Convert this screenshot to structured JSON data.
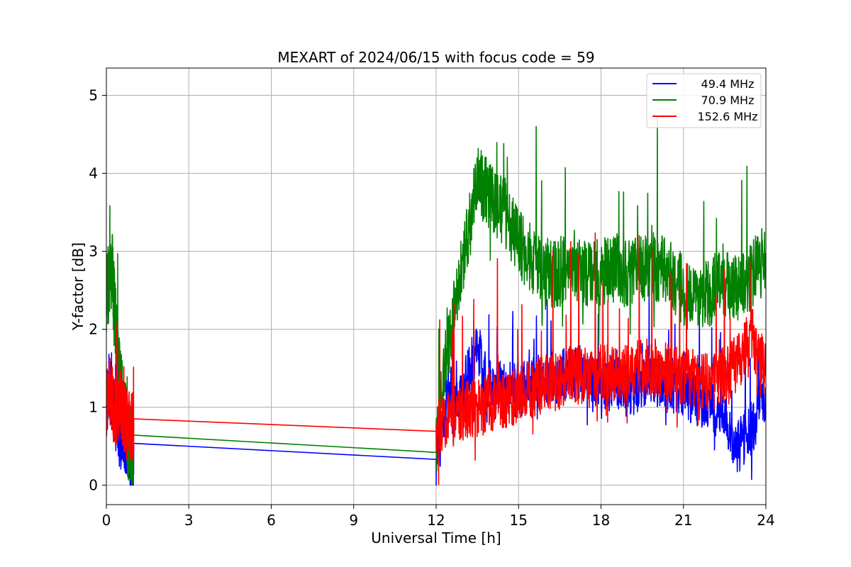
{
  "chart_data": {
    "type": "line",
    "title": "MEXART of 2024/06/15 with focus code = 59",
    "xlabel": "Universal Time [h]",
    "ylabel": "Y-factor [dB]",
    "xlim": [
      0,
      24
    ],
    "ylim": [
      -0.25,
      5.35
    ],
    "xticks": [
      0,
      3,
      6,
      9,
      12,
      15,
      18,
      21,
      24
    ],
    "yticks": [
      0,
      1,
      2,
      3,
      4,
      5
    ],
    "grid": true,
    "legend_position": "top-right",
    "series": [
      {
        "name": "49.4 MHz",
        "color": "#0000ff",
        "keypoints": {
          "x": [
            0,
            0.1,
            0.2,
            0.3,
            0.4,
            0.5,
            0.6,
            0.7,
            0.8,
            0.9,
            1.0,
            12.0,
            12.25,
            12.5,
            12.75,
            13.0,
            13.25,
            13.5,
            13.75,
            14.0,
            14.5,
            15.0,
            15.5,
            16.0,
            16.5,
            17.0,
            17.5,
            18.0,
            18.5,
            19.0,
            19.5,
            20.0,
            20.5,
            21.0,
            21.5,
            22.0,
            22.5,
            22.8,
            23.0,
            23.3,
            23.6,
            23.8,
            24.0
          ],
          "y": [
            1.0,
            1.3,
            1.1,
            0.9,
            0.8,
            0.6,
            0.7,
            0.5,
            0.45,
            0.35,
            0.33,
            0.33,
            0.9,
            1.2,
            1.1,
            1.25,
            1.5,
            1.8,
            1.4,
            1.3,
            1.25,
            1.2,
            1.3,
            1.35,
            1.4,
            1.45,
            1.4,
            1.3,
            1.35,
            1.2,
            1.3,
            1.35,
            1.3,
            1.2,
            1.1,
            1.0,
            0.9,
            0.6,
            0.5,
            0.65,
            0.8,
            1.2,
            1.0
          ],
          "noise_amp": 0.35,
          "spike_max": 2.65
        }
      },
      {
        "name": "70.9 MHz",
        "color": "#008000",
        "keypoints": {
          "x": [
            0,
            0.1,
            0.2,
            0.3,
            0.4,
            0.5,
            0.6,
            0.7,
            0.8,
            0.9,
            1.0,
            12.0,
            12.25,
            12.5,
            12.75,
            13.0,
            13.25,
            13.5,
            13.75,
            14.0,
            14.25,
            14.5,
            14.75,
            15.0,
            15.5,
            16.0,
            16.5,
            17.0,
            17.5,
            18.0,
            18.5,
            19.0,
            19.5,
            20.0,
            20.5,
            21.0,
            21.5,
            22.0,
            22.5,
            23.0,
            23.5,
            24.0
          ],
          "y": [
            2.4,
            2.6,
            2.8,
            2.2,
            1.7,
            1.3,
            1.0,
            0.8,
            0.6,
            0.5,
            0.43,
            0.42,
            1.4,
            1.9,
            2.4,
            2.9,
            3.4,
            3.9,
            3.8,
            3.7,
            3.6,
            3.5,
            3.3,
            3.1,
            2.9,
            2.75,
            2.7,
            2.85,
            2.7,
            2.75,
            2.8,
            2.7,
            2.75,
            2.8,
            2.7,
            2.5,
            2.3,
            2.5,
            2.6,
            2.5,
            2.7,
            2.9
          ],
          "noise_amp": 0.45,
          "spike_max": 5.07
        }
      },
      {
        "name": "152.6 MHz",
        "color": "#ff0000",
        "keypoints": {
          "x": [
            0,
            0.1,
            0.2,
            0.3,
            0.4,
            0.5,
            0.6,
            0.7,
            0.8,
            0.9,
            1.0,
            12.0,
            12.25,
            12.5,
            12.75,
            13.0,
            13.5,
            14.0,
            14.5,
            15.0,
            15.5,
            16.0,
            16.5,
            17.0,
            17.5,
            18.0,
            18.5,
            19.0,
            19.5,
            20.0,
            20.5,
            21.0,
            21.5,
            22.0,
            22.5,
            23.0,
            23.5,
            24.0
          ],
          "y": [
            1.0,
            1.2,
            1.1,
            0.9,
            1.0,
            1.1,
            0.9,
            0.8,
            0.75,
            0.75,
            0.72,
            0.69,
            0.8,
            0.85,
            0.9,
            0.95,
            1.0,
            1.05,
            1.1,
            1.15,
            1.25,
            1.3,
            1.35,
            1.4,
            1.4,
            1.45,
            1.4,
            1.45,
            1.5,
            1.5,
            1.45,
            1.4,
            1.35,
            1.3,
            1.4,
            1.6,
            1.9,
            1.5
          ],
          "noise_amp": 0.38,
          "spike_max": 4.1
        }
      }
    ]
  }
}
